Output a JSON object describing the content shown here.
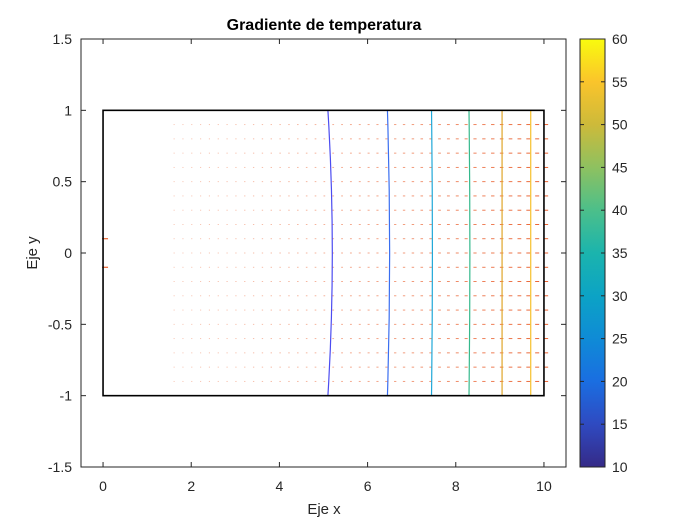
{
  "chart_data": {
    "type": "contour",
    "title": "Gradiente de temperatura",
    "xlabel": "Eje x",
    "ylabel": "Eje y",
    "xlim": [
      -0.5,
      10.5
    ],
    "ylim": [
      -1.5,
      1.5
    ],
    "xticks": [
      0,
      2,
      4,
      6,
      8,
      10
    ],
    "xtick_labels": [
      "0",
      "2",
      "4",
      "6",
      "8",
      "10"
    ],
    "yticks": [
      1.5,
      1,
      0.5,
      0,
      -0.5,
      -1,
      -1.5
    ],
    "ytick_labels": [
      "1.5",
      "1",
      "0.5",
      "0",
      "-0.5",
      "-1",
      "-1.5"
    ],
    "grid": false,
    "domain_rectangle": {
      "x": [
        0,
        10
      ],
      "y": [
        -1,
        1
      ]
    },
    "contours": [
      {
        "level": 15,
        "color": "#4c4cf0",
        "x_bottom": 5.1,
        "x_mid": 5.2,
        "x_top": 5.1
      },
      {
        "level": 20,
        "color": "#3a6ef0",
        "x_bottom": 6.45,
        "x_mid": 6.5,
        "x_top": 6.45
      },
      {
        "level": 30,
        "color": "#20a8d8",
        "x_bottom": 7.45,
        "x_mid": 7.47,
        "x_top": 7.45
      },
      {
        "level": 40,
        "color": "#35b98c",
        "x_bottom": 8.3,
        "x_mid": 8.32,
        "x_top": 8.3
      },
      {
        "level": 50,
        "color": "#e0a52a",
        "x_bottom": 9.05,
        "x_mid": 9.05,
        "x_top": 9.05
      },
      {
        "level": 55,
        "color": "#f6c02c",
        "x_bottom": 9.7,
        "x_mid": 9.7,
        "x_top": 9.7
      }
    ],
    "quiver": {
      "color": "#e8521c",
      "rows_y": [
        0.9,
        0.8,
        0.7,
        0.6,
        0.5,
        0.4,
        0.3,
        0.2,
        0.1,
        0.0,
        -0.1,
        -0.2,
        -0.3,
        -0.4,
        -0.5,
        -0.6,
        -0.7,
        -0.8,
        -0.9
      ]
    },
    "colorbar": {
      "range": [
        10,
        60
      ],
      "ticks": [
        10,
        15,
        20,
        25,
        30,
        35,
        40,
        45,
        50,
        55,
        60
      ],
      "tick_labels": [
        "10",
        "15",
        "20",
        "25",
        "30",
        "35",
        "40",
        "45",
        "50",
        "55",
        "60"
      ],
      "colormap": "parula"
    }
  }
}
